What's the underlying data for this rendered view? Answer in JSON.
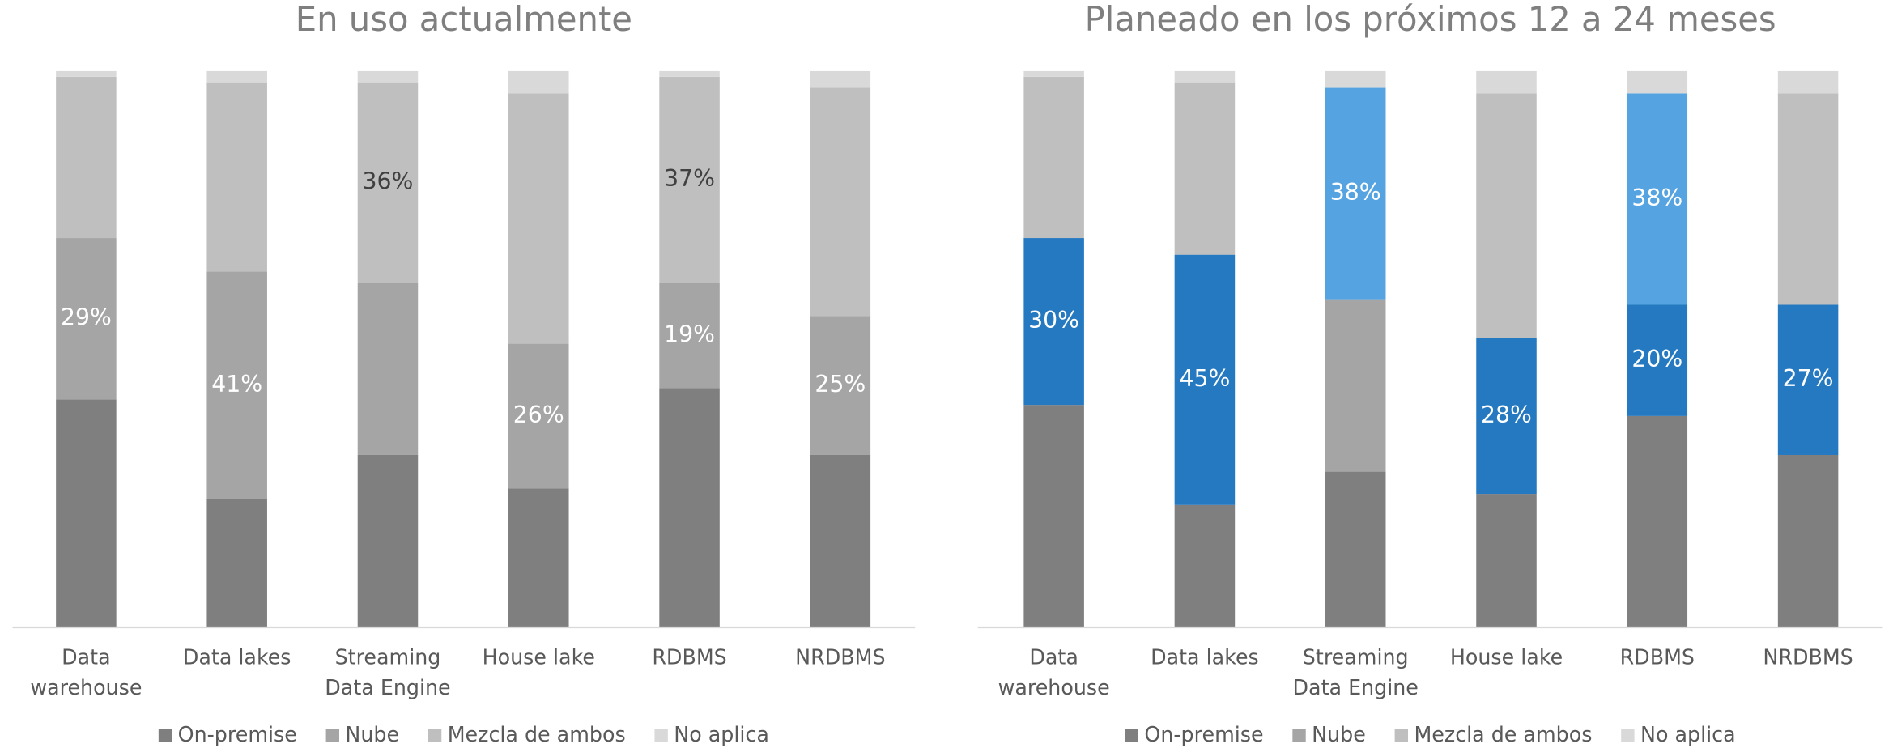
{
  "chart_data": [
    {
      "type": "stacked_bar",
      "title": "En uso actualmente",
      "legend": "bottom",
      "categories": [
        "Data warehouse",
        "Data lakes",
        "Streaming Data Engine",
        "House lake",
        "RDBMS",
        "NRDBMS"
      ],
      "ylim": [
        0,
        100
      ],
      "series": [
        {
          "name": "On-premise",
          "color": "#7f7f7f",
          "values": [
            41,
            23,
            31,
            25,
            43,
            31
          ],
          "value_labels": [
            null,
            null,
            null,
            null,
            null,
            null
          ]
        },
        {
          "name": "Nube",
          "color": "#a5a5a5",
          "values": [
            29,
            41,
            31,
            26,
            19,
            25
          ],
          "value_labels": [
            "29%",
            "41%",
            null,
            "26%",
            "19%",
            "25%"
          ]
        },
        {
          "name": "Mezcla de ambos",
          "color": "#bfbfbf",
          "values": [
            29,
            34,
            36,
            45,
            37,
            41
          ],
          "value_labels": [
            null,
            null,
            "36%",
            null,
            "37%",
            null
          ]
        },
        {
          "name": "No aplica",
          "color": "#d9d9d9",
          "values": [
            1,
            2,
            2,
            4,
            1,
            3
          ],
          "value_labels": [
            null,
            null,
            null,
            null,
            null,
            null
          ]
        }
      ]
    },
    {
      "type": "stacked_bar",
      "title": "Planeado en los próximos 12 a 24 meses",
      "legend": "bottom",
      "categories": [
        "Data warehouse",
        "Data lakes",
        "Streaming Data Engine",
        "House lake",
        "RDBMS",
        "NRDBMS"
      ],
      "ylim": [
        0,
        100
      ],
      "series": [
        {
          "name": "On-premise",
          "color": "#7f7f7f",
          "values": [
            40,
            22,
            28,
            24,
            38,
            31
          ],
          "value_labels": [
            null,
            null,
            null,
            null,
            null,
            null
          ]
        },
        {
          "name": "Nube",
          "color": "#a5a5a5",
          "point_colors": [
            "#2479c1",
            "#2479c1",
            "#a5a5a5",
            "#2479c1",
            "#2479c1",
            "#2479c1"
          ],
          "values": [
            30,
            45,
            31,
            28,
            20,
            27
          ],
          "value_labels": [
            "30%",
            "45%",
            null,
            "28%",
            "20%",
            "27%"
          ]
        },
        {
          "name": "Mezcla de ambos",
          "color": "#bfbfbf",
          "point_colors": [
            "#bfbfbf",
            "#bfbfbf",
            "#55a3e0",
            "#bfbfbf",
            "#55a3e0",
            "#bfbfbf"
          ],
          "values": [
            29,
            31,
            38,
            44,
            38,
            38
          ],
          "value_labels": [
            null,
            null,
            "38%",
            null,
            "38%",
            null
          ]
        },
        {
          "name": "No aplica",
          "color": "#d9d9d9",
          "values": [
            1,
            2,
            3,
            4,
            4,
            4
          ],
          "value_labels": [
            null,
            null,
            null,
            null,
            null,
            null
          ]
        }
      ]
    }
  ]
}
